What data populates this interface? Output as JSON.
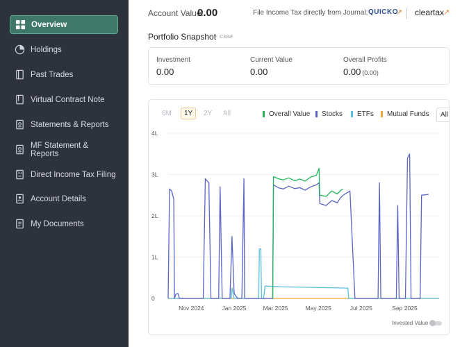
{
  "sidebar": {
    "items": [
      {
        "label": "Overview",
        "icon": "grid-icon",
        "active": true
      },
      {
        "label": "Holdings",
        "icon": "pie-chart-icon"
      },
      {
        "label": "Past Trades",
        "icon": "book-icon"
      },
      {
        "label": "Virtual Contract Note",
        "icon": "document-icon"
      },
      {
        "label": "Statements & Reports",
        "icon": "report-icon"
      },
      {
        "label": "MF Statement & Reports",
        "icon": "report-icon"
      },
      {
        "label": "Direct Income Tax Filing",
        "icon": "tax-document-icon"
      },
      {
        "label": "Account Details",
        "icon": "user-document-icon"
      },
      {
        "label": "My Documents",
        "icon": "documents-icon"
      }
    ]
  },
  "header": {
    "account_value_label": "Account Value:",
    "account_value": "0.00",
    "tax_label": "File Income Tax directly from Journal:",
    "quicko": "QUICKO",
    "cleartax": "cleartax"
  },
  "snapshot": {
    "title": "Portfolio Snapshot",
    "close_label": "Close",
    "investment_label": "Investment",
    "investment_value": "0.00",
    "current_label": "Current Value",
    "current_value": "0.00",
    "profits_label": "Overall Profits",
    "profits_value": "0.00",
    "profits_pct": "(0.00)"
  },
  "chart_controls": {
    "ranges": [
      "6M",
      "1Y",
      "2Y",
      "All"
    ],
    "active_range": "1Y",
    "dropdown_value": "All",
    "toggle_label": "Invested Value"
  },
  "colors": {
    "overall_value": "#21b45a",
    "stocks": "#5865c4",
    "etfs": "#5bbfe0",
    "mutual_funds": "#f0a83a"
  },
  "chart_data": {
    "type": "line",
    "y_tick_labels": [
      "0",
      "1L",
      "2L",
      "3L",
      "4L"
    ],
    "ylim": [
      0,
      400000
    ],
    "x_tick_labels": [
      "Nov 2024",
      "Jan 2025",
      "Mar 2025",
      "May 2025",
      "Jul 2025",
      "Sep 2025"
    ],
    "xlim": [
      "2024-09-29",
      "2025-10-20"
    ],
    "grid": true,
    "legend_position": "top",
    "series": [
      {
        "name": "Overall Value",
        "color": "#21b45a",
        "points": [
          [
            "2025-02-25",
            0
          ],
          [
            "2025-02-26",
            295000
          ],
          [
            "2025-03-05",
            290000
          ],
          [
            "2025-03-12",
            287000
          ],
          [
            "2025-03-20",
            292000
          ],
          [
            "2025-03-28",
            285000
          ],
          [
            "2025-04-05",
            289000
          ],
          [
            "2025-04-12",
            284000
          ],
          [
            "2025-04-20",
            294000
          ],
          [
            "2025-04-28",
            298000
          ],
          [
            "2025-05-02",
            315000
          ],
          [
            "2025-05-03",
            250000
          ],
          [
            "2025-05-12",
            247000
          ],
          [
            "2025-05-20",
            260000
          ],
          [
            "2025-05-28",
            253000
          ],
          [
            "2025-06-02",
            262000
          ],
          [
            "2025-06-05",
            265000
          ]
        ]
      },
      {
        "name": "Stocks",
        "color": "#5865c4",
        "points": [
          [
            "2024-09-29",
            0
          ],
          [
            "2024-10-01",
            265000
          ],
          [
            "2024-10-04",
            260000
          ],
          [
            "2024-10-07",
            240000
          ],
          [
            "2024-10-08",
            0
          ],
          [
            "2024-10-10",
            10000
          ],
          [
            "2024-10-13",
            12000
          ],
          [
            "2024-10-15",
            0
          ],
          [
            "2024-11-18",
            0
          ],
          [
            "2024-11-21",
            290000
          ],
          [
            "2024-11-26",
            280000
          ],
          [
            "2024-11-29",
            0
          ],
          [
            "2024-12-10",
            0
          ],
          [
            "2024-12-12",
            270000
          ],
          [
            "2024-12-15",
            0
          ],
          [
            "2024-12-26",
            0
          ],
          [
            "2024-12-29",
            150000
          ],
          [
            "2025-01-01",
            12000
          ],
          [
            "2025-01-06",
            0
          ],
          [
            "2025-01-12",
            0
          ],
          [
            "2025-01-15",
            290000
          ],
          [
            "2025-01-16",
            0
          ],
          [
            "2025-02-25",
            0
          ],
          [
            "2025-02-26",
            275000
          ],
          [
            "2025-03-05",
            268000
          ],
          [
            "2025-03-12",
            265000
          ],
          [
            "2025-03-20",
            272000
          ],
          [
            "2025-03-28",
            266000
          ],
          [
            "2025-04-05",
            268000
          ],
          [
            "2025-04-12",
            262000
          ],
          [
            "2025-04-20",
            270000
          ],
          [
            "2025-04-28",
            275000
          ],
          [
            "2025-05-02",
            280000
          ],
          [
            "2025-05-03",
            230000
          ],
          [
            "2025-05-12",
            225000
          ],
          [
            "2025-05-20",
            237000
          ],
          [
            "2025-05-28",
            232000
          ],
          [
            "2025-06-02",
            245000
          ],
          [
            "2025-06-07",
            252000
          ],
          [
            "2025-06-15",
            260000
          ],
          [
            "2025-06-22",
            0
          ],
          [
            "2025-07-25",
            0
          ],
          [
            "2025-07-27",
            280000
          ],
          [
            "2025-07-29",
            0
          ],
          [
            "2025-08-20",
            0
          ],
          [
            "2025-08-22",
            225000
          ],
          [
            "2025-08-24",
            0
          ],
          [
            "2025-09-02",
            0
          ],
          [
            "2025-09-05",
            340000
          ],
          [
            "2025-09-08",
            350000
          ],
          [
            "2025-09-10",
            0
          ],
          [
            "2025-09-23",
            0
          ],
          [
            "2025-09-25",
            250000
          ],
          [
            "2025-10-05",
            252000
          ]
        ]
      },
      {
        "name": "ETFs",
        "color": "#5bbfe0",
        "points": [
          [
            "2024-09-29",
            0
          ],
          [
            "2024-12-28",
            0
          ],
          [
            "2024-12-29",
            25000
          ],
          [
            "2025-01-01",
            0
          ],
          [
            "2025-02-05",
            0
          ],
          [
            "2025-02-06",
            120000
          ],
          [
            "2025-02-08",
            120000
          ],
          [
            "2025-02-09",
            0
          ],
          [
            "2025-02-12",
            0
          ],
          [
            "2025-02-14",
            30000
          ],
          [
            "2025-03-10",
            28000
          ],
          [
            "2025-04-10",
            27000
          ],
          [
            "2025-05-10",
            26000
          ],
          [
            "2025-06-12",
            25000
          ],
          [
            "2025-06-13",
            0
          ],
          [
            "2025-10-20",
            0
          ]
        ]
      },
      {
        "name": "Mutual Funds",
        "color": "#f0a83a",
        "points": [
          [
            "2024-09-29",
            0
          ],
          [
            "2025-10-20",
            0
          ]
        ]
      }
    ]
  }
}
